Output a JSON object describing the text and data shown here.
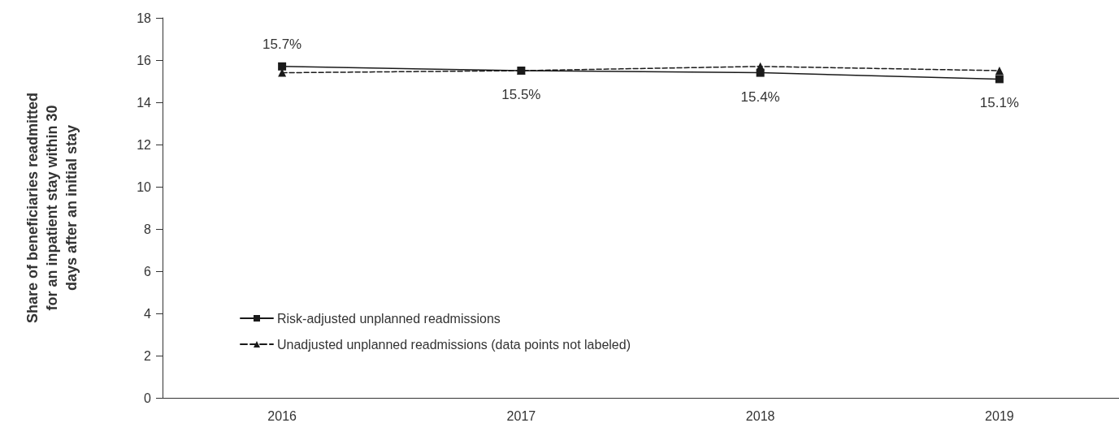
{
  "chart_data": {
    "type": "line",
    "ylabel": "Share of beneficiaries readmitted for an inpatient stay within 30 days after an initial stay",
    "categories": [
      "2016",
      "2017",
      "2018",
      "2019"
    ],
    "series": [
      {
        "name": "Risk-adjusted unplanned readmissions",
        "color": "#1a1a1a",
        "values": [
          15.7,
          15.5,
          15.4,
          15.1
        ],
        "value_labels": [
          "15.7%",
          "15.5%",
          "15.4%",
          "15.1%"
        ],
        "marker": "square",
        "line_style": "solid"
      },
      {
        "name": "Unadjusted unplanned readmissions (data points not labeled)",
        "color": "#1a1a1a",
        "values": [
          15.4,
          15.5,
          15.7,
          15.5
        ],
        "marker": "triangle",
        "line_style": "dashed"
      }
    ],
    "ylim": [
      0,
      18
    ],
    "yticks": [
      0,
      2,
      4,
      6,
      8,
      10,
      12,
      14,
      16,
      18
    ],
    "grid": false,
    "legend": "bottom left"
  }
}
